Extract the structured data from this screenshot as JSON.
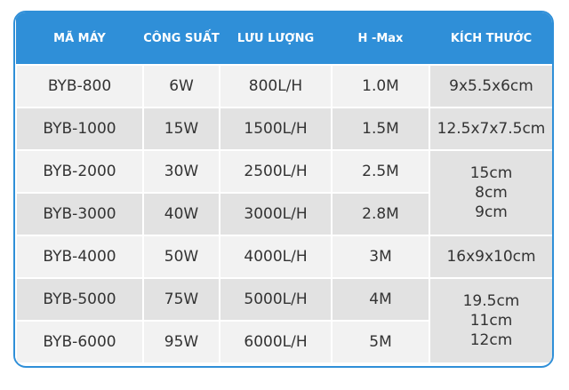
{
  "table": {
    "header": [
      "MÃ MÁY",
      "CÔNG SUẤT",
      "LƯU LƯỢNG",
      "H -Max",
      "KÍCH THƯỚC"
    ],
    "rows": [
      [
        "BYB-800",
        "6W",
        "800L/H",
        "1.0M"
      ],
      [
        "BYB-1000",
        "15W",
        "1500L/H",
        "1.5M"
      ],
      [
        "BYB-2000",
        "30W",
        "2500L/H",
        "2.5M"
      ],
      [
        "BYB-3000",
        "40W",
        "3000L/H",
        "2.8M"
      ],
      [
        "BYB-4000",
        "50W",
        "4000L/H",
        "3M"
      ],
      [
        "BYB-5000",
        "75W",
        "5000L/H",
        "4M"
      ],
      [
        "BYB-6000",
        "95W",
        "6000L/H",
        "5M"
      ]
    ],
    "sizes": [
      [
        "9x5.5x6cm"
      ],
      [
        "12.5x7x7.5cm"
      ],
      [
        "15cm",
        "8cm",
        "9cm"
      ],
      [
        "16x9x10cm"
      ],
      [
        "19.5cm",
        "11cm",
        "12cm"
      ]
    ]
  }
}
